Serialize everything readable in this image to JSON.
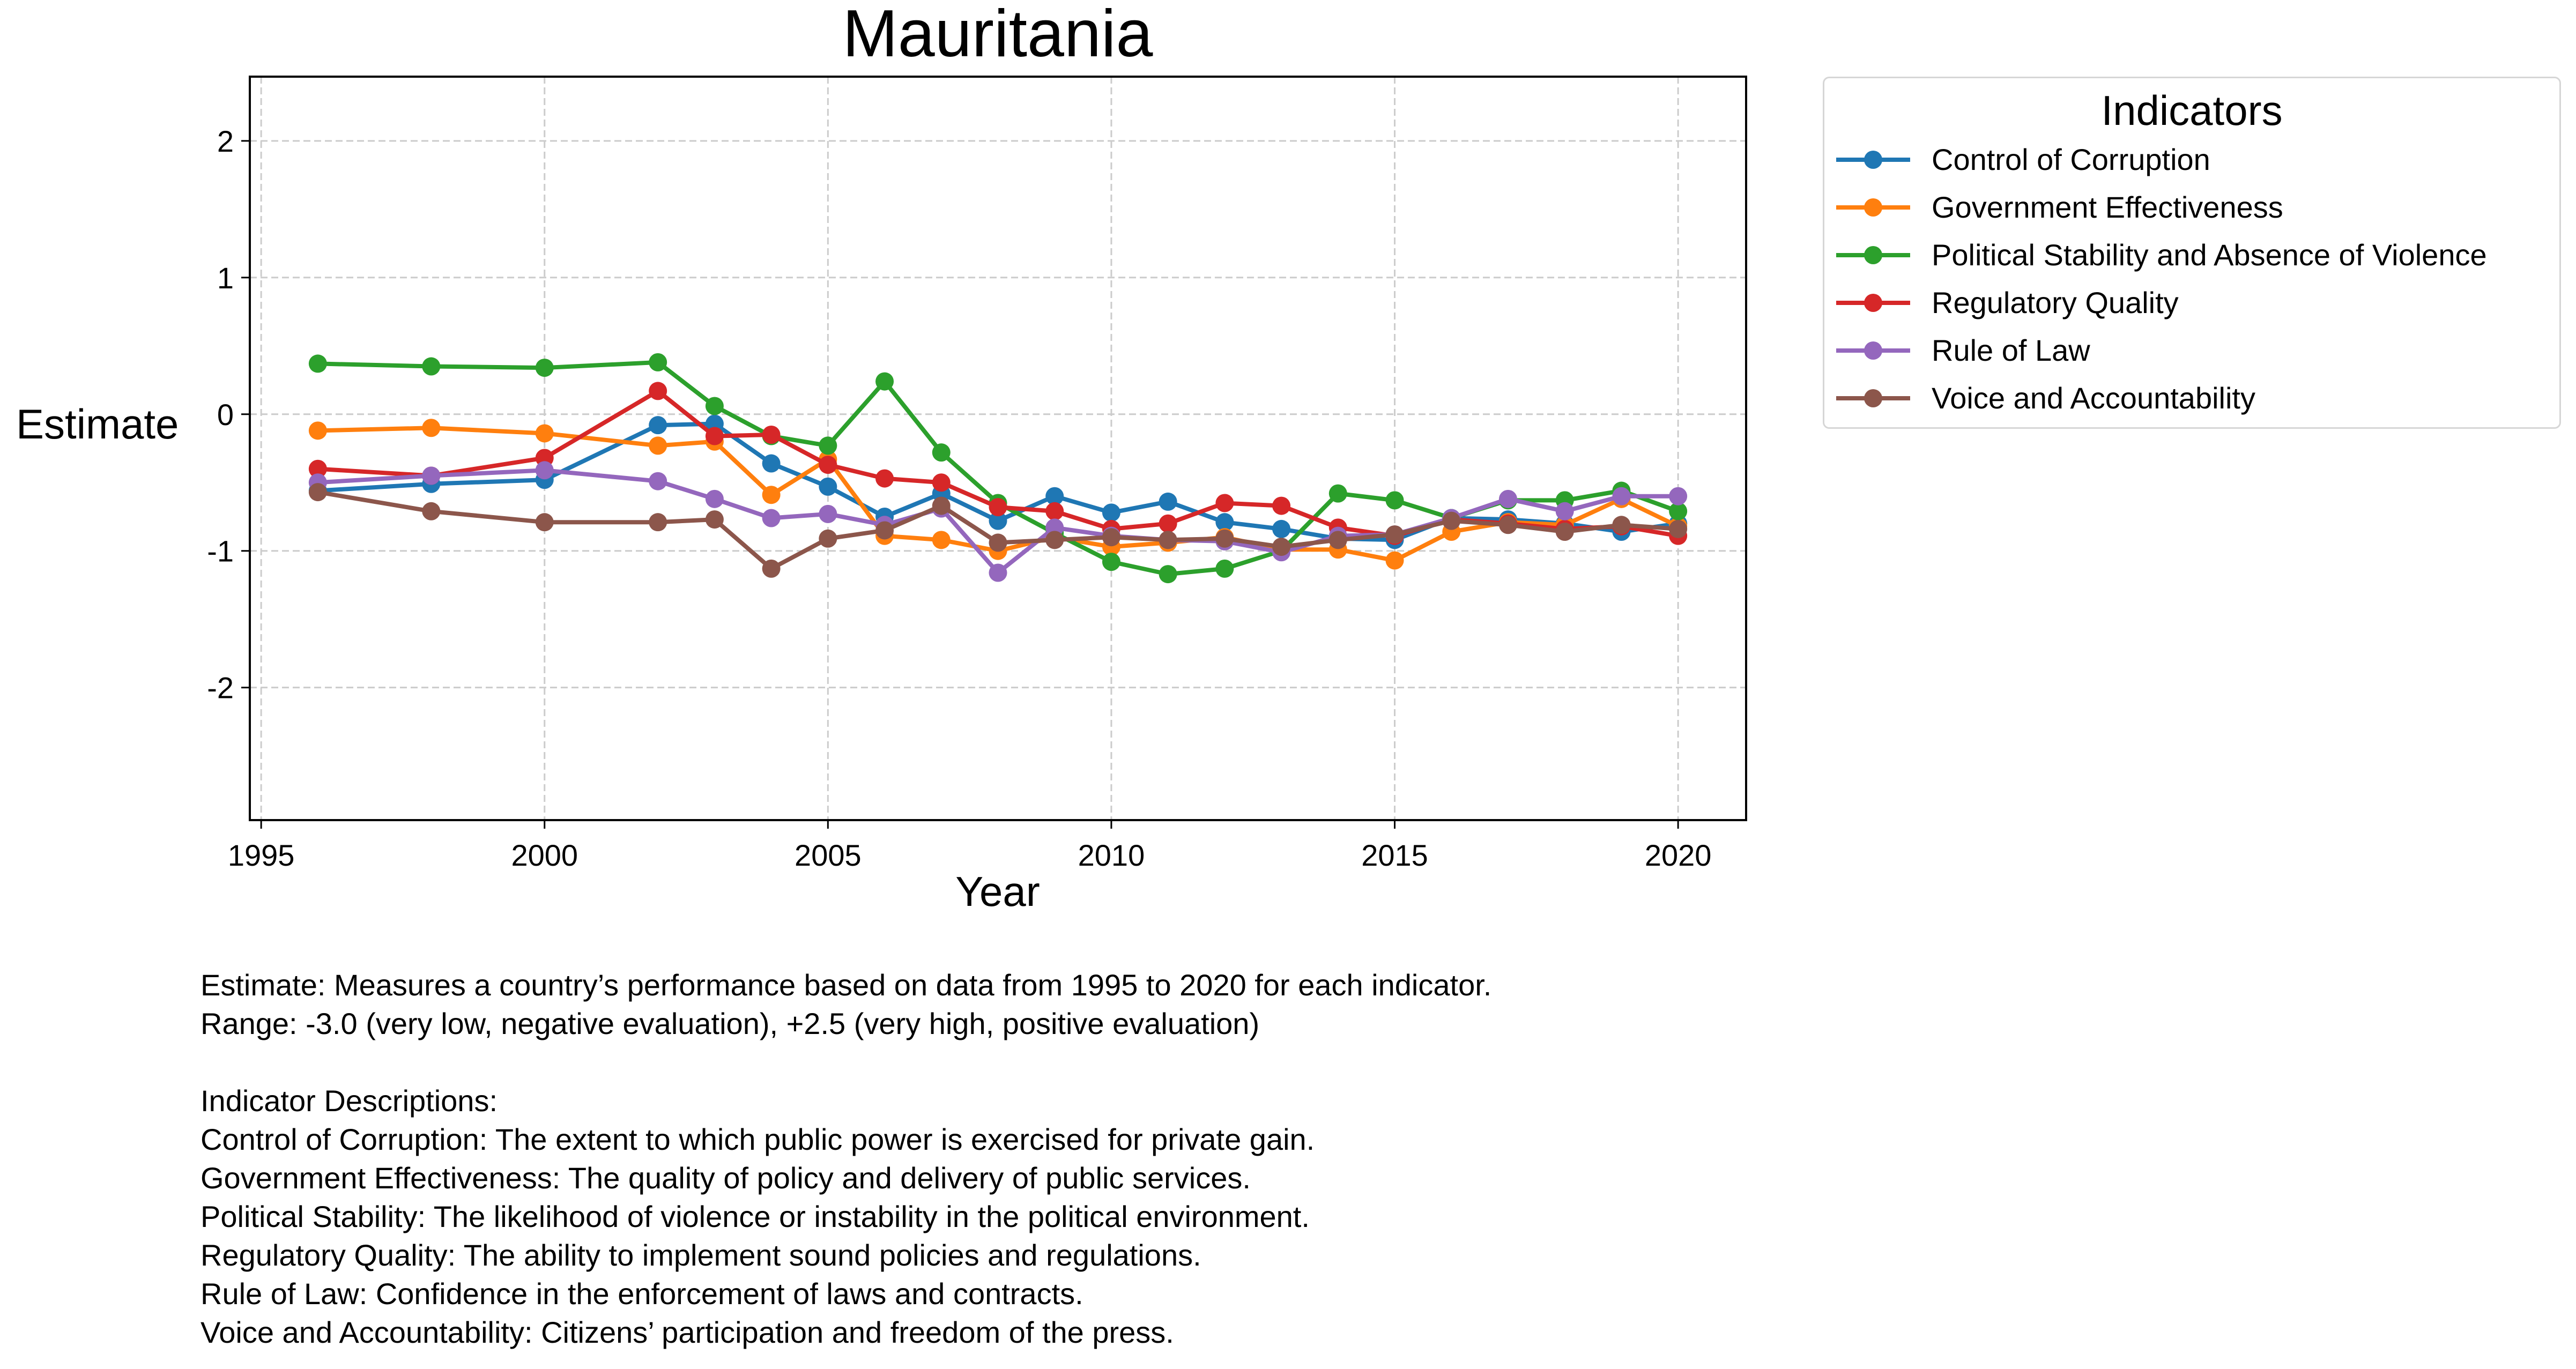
{
  "chart_data": {
    "type": "line",
    "title": "Mauritania",
    "xlabel": "Year",
    "ylabel": "Estimate",
    "xlim": [
      1994.8,
      2021.2
    ],
    "ylim": [
      -2.97,
      2.47
    ],
    "xticks": [
      1995,
      2000,
      2005,
      2010,
      2015,
      2020
    ],
    "yticks": [
      -2,
      -1,
      0,
      1,
      2
    ],
    "grid": true,
    "legend_title": "Indicators",
    "legend_position": "outside-top-right",
    "x": [
      1996,
      1998,
      2000,
      2002,
      2003,
      2004,
      2005,
      2006,
      2007,
      2008,
      2009,
      2010,
      2011,
      2012,
      2013,
      2014,
      2015,
      2016,
      2017,
      2018,
      2019,
      2020
    ],
    "series": [
      {
        "name": "Control of Corruption",
        "color": "#1f77b4",
        "values": [
          -0.56,
          -0.51,
          -0.48,
          -0.08,
          -0.07,
          -0.36,
          -0.53,
          -0.75,
          -0.58,
          -0.78,
          -0.6,
          -0.72,
          -0.64,
          -0.79,
          -0.84,
          -0.91,
          -0.92,
          -0.76,
          -0.77,
          -0.8,
          -0.86,
          -0.8
        ]
      },
      {
        "name": "Government Effectiveness",
        "color": "#ff7f0e",
        "values": [
          -0.12,
          -0.1,
          -0.14,
          -0.23,
          -0.2,
          -0.59,
          -0.33,
          -0.89,
          -0.92,
          -1.0,
          -0.9,
          -0.97,
          -0.94,
          -0.9,
          -0.99,
          -0.99,
          -1.07,
          -0.86,
          -0.79,
          -0.81,
          -0.62,
          -0.82
        ]
      },
      {
        "name": "Political Stability and Absence of Violence",
        "color": "#2ca02c",
        "values": [
          0.37,
          0.35,
          0.34,
          0.38,
          0.06,
          -0.16,
          -0.23,
          0.24,
          -0.28,
          -0.65,
          -0.87,
          -1.08,
          -1.17,
          -1.13,
          -1.0,
          -0.58,
          -0.63,
          -0.76,
          -0.63,
          -0.63,
          -0.56,
          -0.71
        ]
      },
      {
        "name": "Regulatory Quality",
        "color": "#d62728",
        "values": [
          -0.4,
          -0.45,
          -0.32,
          0.17,
          -0.16,
          -0.15,
          -0.37,
          -0.47,
          -0.5,
          -0.68,
          -0.71,
          -0.84,
          -0.8,
          -0.65,
          -0.67,
          -0.83,
          -0.89,
          -0.77,
          -0.8,
          -0.84,
          -0.82,
          -0.89
        ]
      },
      {
        "name": "Rule of Law",
        "color": "#9467bd",
        "values": [
          -0.5,
          -0.45,
          -0.41,
          -0.49,
          -0.62,
          -0.76,
          -0.73,
          -0.81,
          -0.69,
          -1.16,
          -0.83,
          -0.89,
          -0.92,
          -0.93,
          -1.01,
          -0.89,
          -0.88,
          -0.76,
          -0.62,
          -0.71,
          -0.6,
          -0.6
        ]
      },
      {
        "name": "Voice and Accountability",
        "color": "#8c564b",
        "values": [
          -0.57,
          -0.71,
          -0.79,
          -0.79,
          -0.77,
          -1.13,
          -0.91,
          -0.85,
          -0.67,
          -0.94,
          -0.92,
          -0.9,
          -0.92,
          -0.91,
          -0.97,
          -0.92,
          -0.88,
          -0.78,
          -0.81,
          -0.86,
          -0.81,
          -0.84
        ]
      }
    ]
  },
  "notes": [
    "Estimate: Measures a country’s performance based on data from 1995 to 2020 for each indicator.",
    "Range: -3.0 (very low, negative evaluation), +2.5 (very high, positive evaluation)",
    "",
    "Indicator Descriptions:",
    "Control of Corruption: The extent to which public power is exercised for private gain.",
    "Government Effectiveness: The quality of policy and delivery of public services.",
    "Political Stability: The likelihood of violence or instability in the political environment.",
    "Regulatory Quality: The ability to implement sound policies and regulations.",
    "Rule of Law: Confidence in the enforcement of laws and contracts.",
    "Voice and Accountability: Citizens’ participation and freedom of the press."
  ]
}
